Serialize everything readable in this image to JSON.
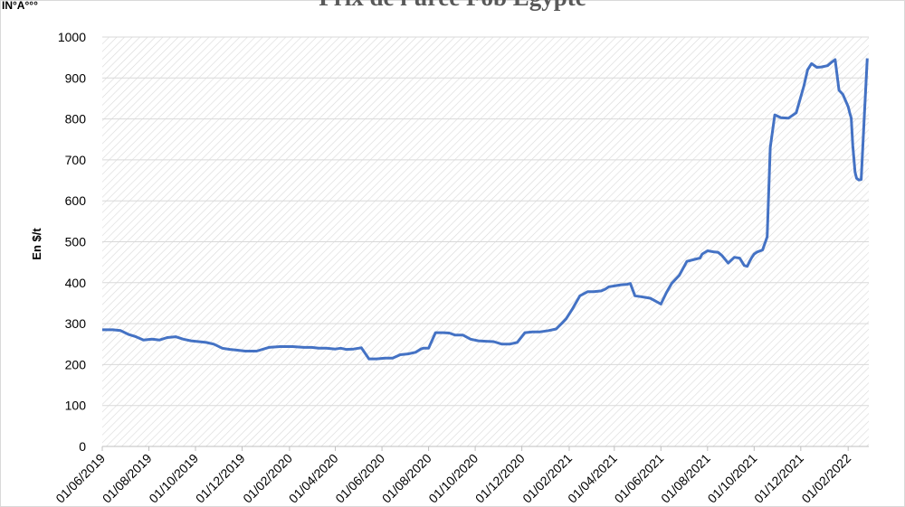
{
  "corner_text": "IN°A°°°",
  "chart_data": {
    "type": "line",
    "title": "Prix de l'urée Fob Egypte",
    "xlabel": "",
    "ylabel": "En $/t",
    "ylim": [
      0,
      1000
    ],
    "yticks": [
      0,
      100,
      200,
      300,
      400,
      500,
      600,
      700,
      800,
      900,
      1000
    ],
    "grid": true,
    "line_color": "#4472C4",
    "x_tick_labels": [
      "01/06/2019",
      "01/08/2019",
      "01/10/2019",
      "01/12/2019",
      "01/02/2020",
      "01/04/2020",
      "01/06/2020",
      "01/08/2020",
      "01/10/2020",
      "01/12/2020",
      "01/02/2021",
      "01/04/2021",
      "01/06/2021",
      "01/08/2021",
      "01/10/2021",
      "01/12/2021",
      "01/02/2022"
    ],
    "series": [
      {
        "x": [
          "2019-06-01",
          "2019-06-15",
          "2019-06-25",
          "2019-07-05",
          "2019-07-15",
          "2019-07-25",
          "2019-08-05",
          "2019-08-15",
          "2019-08-25",
          "2019-09-05",
          "2019-09-15",
          "2019-09-25",
          "2019-10-05",
          "2019-10-15",
          "2019-10-25",
          "2019-11-05",
          "2019-11-15",
          "2019-11-25",
          "2019-12-05",
          "2019-12-20",
          "2020-01-05",
          "2020-01-20",
          "2020-02-05",
          "2020-02-20",
          "2020-03-01",
          "2020-03-10",
          "2020-03-20",
          "2020-04-01",
          "2020-04-08",
          "2020-04-15",
          "2020-04-25",
          "2020-05-05",
          "2020-05-15",
          "2020-05-25",
          "2020-06-05",
          "2020-06-15",
          "2020-06-25",
          "2020-07-05",
          "2020-07-15",
          "2020-07-22",
          "2020-07-25",
          "2020-08-01",
          "2020-08-10",
          "2020-08-20",
          "2020-08-28",
          "2020-09-05",
          "2020-09-15",
          "2020-09-25",
          "2020-10-05",
          "2020-10-15",
          "2020-10-25",
          "2020-11-05",
          "2020-11-15",
          "2020-11-25",
          "2020-12-05",
          "2020-12-15",
          "2020-12-25",
          "2021-01-05",
          "2021-01-15",
          "2021-01-22",
          "2021-01-28",
          "2021-02-05",
          "2021-02-15",
          "2021-02-25",
          "2021-03-05",
          "2021-03-15",
          "2021-03-20",
          "2021-03-25",
          "2021-04-01",
          "2021-04-10",
          "2021-04-18",
          "2021-04-22",
          "2021-04-28",
          "2021-05-05",
          "2021-05-12",
          "2021-05-18",
          "2021-05-25",
          "2021-06-01",
          "2021-06-08",
          "2021-06-15",
          "2021-06-25",
          "2021-07-05",
          "2021-07-15",
          "2021-07-22",
          "2021-07-25",
          "2021-08-01",
          "2021-08-10",
          "2021-08-15",
          "2021-08-20",
          "2021-08-28",
          "2021-09-05",
          "2021-09-12",
          "2021-09-18",
          "2021-09-22",
          "2021-09-25",
          "2021-09-28",
          "2021-10-01",
          "2021-10-05",
          "2021-10-12",
          "2021-10-18",
          "2021-10-22",
          "2021-10-28",
          "2021-11-05",
          "2021-11-15",
          "2021-11-25",
          "2021-12-05",
          "2021-12-10",
          "2021-12-15",
          "2021-12-22",
          "2021-12-28",
          "2022-01-05",
          "2022-01-10",
          "2022-01-15",
          "2022-01-20",
          "2022-01-25",
          "2022-02-01",
          "2022-02-03",
          "2022-02-05",
          "2022-02-07",
          "2022-02-10",
          "2022-02-12",
          "2022-02-15",
          "2022-02-18",
          "2022-02-22",
          "2022-02-26"
        ],
        "y": [
          285,
          285,
          283,
          274,
          268,
          260,
          262,
          260,
          266,
          268,
          262,
          258,
          256,
          254,
          250,
          240,
          237,
          235,
          233,
          233,
          242,
          244,
          244,
          242,
          242,
          240,
          240,
          238,
          240,
          237,
          238,
          241,
          214,
          214,
          216,
          216,
          224,
          226,
          230,
          238,
          240,
          240,
          278,
          278,
          277,
          272,
          272,
          262,
          258,
          257,
          256,
          250,
          250,
          254,
          278,
          280,
          280,
          283,
          287,
          300,
          312,
          335,
          368,
          378,
          378,
          380,
          384,
          390,
          392,
          395,
          396,
          398,
          368,
          366,
          364,
          362,
          355,
          348,
          375,
          398,
          418,
          452,
          457,
          460,
          470,
          478,
          475,
          474,
          466,
          448,
          462,
          460,
          442,
          440,
          452,
          462,
          470,
          475,
          480,
          512,
          730,
          810,
          803,
          802,
          815,
          880,
          920,
          935,
          926,
          927,
          930,
          938,
          945,
          870,
          860,
          830,
          815,
          802,
          735,
          670,
          655,
          651,
          652,
          800,
          948
        ]
      }
    ]
  }
}
